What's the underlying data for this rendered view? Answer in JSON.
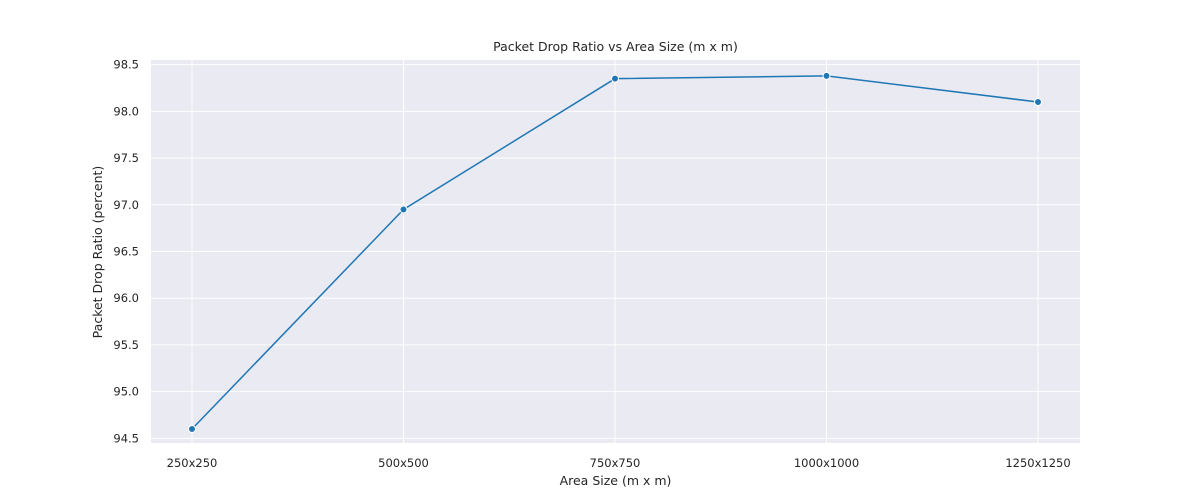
{
  "chart_data": {
    "type": "line",
    "title": "Packet Drop Ratio vs Area Size (m x m)",
    "xlabel": "Area Size (m x m)",
    "ylabel": "Packet Drop Ratio (percent)",
    "categories": [
      "250x250",
      "500x500",
      "750x750",
      "1000x1000",
      "1250x1250"
    ],
    "series": [
      {
        "values": [
          94.6,
          96.95,
          98.35,
          98.38,
          98.1
        ]
      }
    ],
    "ylim": [
      94.45,
      98.55
    ],
    "yticks": [
      "94.5",
      "95.0",
      "95.5",
      "96.0",
      "96.5",
      "97.0",
      "97.5",
      "98.0",
      "98.5"
    ],
    "grid": true,
    "colors": {
      "line": "#1f77b4",
      "background": "#eaeaf2",
      "grid": "#ffffff"
    }
  }
}
